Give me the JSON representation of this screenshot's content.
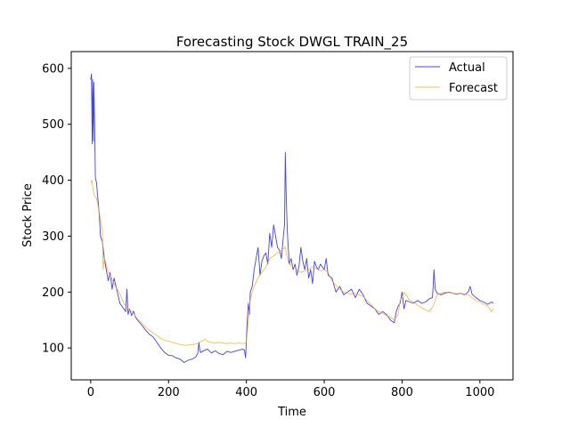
{
  "chart_data": {
    "type": "line",
    "title": "Forecasting Stock DWGL TRAIN_25",
    "xlabel": "Time",
    "ylabel": "Stock Price",
    "xlim": [
      -50,
      1085
    ],
    "ylim": [
      43,
      630
    ],
    "xticks": [
      0,
      200,
      400,
      600,
      800,
      1000
    ],
    "yticks": [
      100,
      200,
      300,
      400,
      500,
      600
    ],
    "grid": false,
    "legend_position": "top-right",
    "series": [
      {
        "name": "Actual",
        "color": "#0000ff",
        "points": [
          [
            0,
            580
          ],
          [
            2,
            590
          ],
          [
            4,
            465
          ],
          [
            5,
            580
          ],
          [
            7,
            470
          ],
          [
            8,
            575
          ],
          [
            10,
            500
          ],
          [
            12,
            405
          ],
          [
            15,
            395
          ],
          [
            18,
            370
          ],
          [
            22,
            340
          ],
          [
            25,
            300
          ],
          [
            30,
            290
          ],
          [
            35,
            260
          ],
          [
            40,
            240
          ],
          [
            45,
            220
          ],
          [
            50,
            235
          ],
          [
            55,
            205
          ],
          [
            60,
            225
          ],
          [
            65,
            210
          ],
          [
            70,
            195
          ],
          [
            75,
            180
          ],
          [
            80,
            175
          ],
          [
            85,
            170
          ],
          [
            90,
            165
          ],
          [
            93,
            205
          ],
          [
            96,
            160
          ],
          [
            100,
            170
          ],
          [
            105,
            158
          ],
          [
            110,
            166
          ],
          [
            115,
            155
          ],
          [
            120,
            150
          ],
          [
            130,
            142
          ],
          [
            140,
            133
          ],
          [
            150,
            125
          ],
          [
            160,
            120
          ],
          [
            170,
            110
          ],
          [
            180,
            100
          ],
          [
            190,
            92
          ],
          [
            200,
            87
          ],
          [
            210,
            86
          ],
          [
            220,
            82
          ],
          [
            230,
            80
          ],
          [
            240,
            74
          ],
          [
            250,
            78
          ],
          [
            260,
            80
          ],
          [
            270,
            84
          ],
          [
            275,
            90
          ],
          [
            278,
            110
          ],
          [
            280,
            98
          ],
          [
            282,
            92
          ],
          [
            290,
            95
          ],
          [
            300,
            98
          ],
          [
            310,
            91
          ],
          [
            320,
            95
          ],
          [
            330,
            90
          ],
          [
            340,
            88
          ],
          [
            350,
            94
          ],
          [
            360,
            92
          ],
          [
            370,
            94
          ],
          [
            380,
            96
          ],
          [
            390,
            98
          ],
          [
            395,
            96
          ],
          [
            398,
            82
          ],
          [
            400,
            115
          ],
          [
            402,
            145
          ],
          [
            405,
            180
          ],
          [
            408,
            160
          ],
          [
            410,
            200
          ],
          [
            415,
            210
          ],
          [
            420,
            240
          ],
          [
            425,
            260
          ],
          [
            430,
            280
          ],
          [
            435,
            230
          ],
          [
            440,
            255
          ],
          [
            445,
            265
          ],
          [
            450,
            270
          ],
          [
            455,
            250
          ],
          [
            460,
            305
          ],
          [
            465,
            280
          ],
          [
            470,
            320
          ],
          [
            475,
            300
          ],
          [
            480,
            280
          ],
          [
            485,
            275
          ],
          [
            490,
            260
          ],
          [
            495,
            300
          ],
          [
            498,
            320
          ],
          [
            500,
            450
          ],
          [
            502,
            380
          ],
          [
            505,
            310
          ],
          [
            510,
            250
          ],
          [
            515,
            260
          ],
          [
            520,
            240
          ],
          [
            525,
            250
          ],
          [
            530,
            230
          ],
          [
            535,
            245
          ],
          [
            540,
            280
          ],
          [
            545,
            255
          ],
          [
            550,
            240
          ],
          [
            555,
            260
          ],
          [
            560,
            225
          ],
          [
            565,
            240
          ],
          [
            570,
            215
          ],
          [
            575,
            255
          ],
          [
            580,
            245
          ],
          [
            585,
            240
          ],
          [
            590,
            250
          ],
          [
            595,
            245
          ],
          [
            600,
            240
          ],
          [
            605,
            260
          ],
          [
            610,
            230
          ],
          [
            620,
            225
          ],
          [
            630,
            200
          ],
          [
            640,
            210
          ],
          [
            650,
            195
          ],
          [
            660,
            200
          ],
          [
            670,
            205
          ],
          [
            680,
            190
          ],
          [
            690,
            205
          ],
          [
            700,
            195
          ],
          [
            710,
            180
          ],
          [
            720,
            175
          ],
          [
            730,
            170
          ],
          [
            740,
            160
          ],
          [
            750,
            165
          ],
          [
            760,
            160
          ],
          [
            770,
            150
          ],
          [
            780,
            145
          ],
          [
            785,
            165
          ],
          [
            790,
            175
          ],
          [
            795,
            180
          ],
          [
            800,
            200
          ],
          [
            805,
            170
          ],
          [
            810,
            185
          ],
          [
            820,
            182
          ],
          [
            830,
            180
          ],
          [
            840,
            185
          ],
          [
            850,
            180
          ],
          [
            860,
            182
          ],
          [
            870,
            188
          ],
          [
            878,
            190
          ],
          [
            880,
            212
          ],
          [
            882,
            240
          ],
          [
            885,
            205
          ],
          [
            890,
            198
          ],
          [
            900,
            195
          ],
          [
            910,
            198
          ],
          [
            920,
            200
          ],
          [
            930,
            198
          ],
          [
            940,
            196
          ],
          [
            950,
            198
          ],
          [
            960,
            195
          ],
          [
            970,
            200
          ],
          [
            975,
            210
          ],
          [
            980,
            196
          ],
          [
            990,
            190
          ],
          [
            1000,
            185
          ],
          [
            1010,
            182
          ],
          [
            1020,
            178
          ],
          [
            1030,
            182
          ],
          [
            1035,
            180
          ]
        ]
      },
      {
        "name": "Forecast",
        "color": "#ffa500",
        "points": [
          [
            0,
            395
          ],
          [
            3,
            400
          ],
          [
            5,
            390
          ],
          [
            8,
            375
          ],
          [
            10,
            372
          ],
          [
            15,
            368
          ],
          [
            20,
            350
          ],
          [
            25,
            330
          ],
          [
            30,
            310
          ],
          [
            32,
            240
          ],
          [
            35,
            260
          ],
          [
            40,
            250
          ],
          [
            45,
            235
          ],
          [
            50,
            230
          ],
          [
            55,
            222
          ],
          [
            60,
            215
          ],
          [
            65,
            208
          ],
          [
            70,
            203
          ],
          [
            75,
            197
          ],
          [
            80,
            188
          ],
          [
            85,
            180
          ],
          [
            90,
            175
          ],
          [
            95,
            172
          ],
          [
            100,
            168
          ],
          [
            110,
            162
          ],
          [
            120,
            152
          ],
          [
            130,
            146
          ],
          [
            140,
            138
          ],
          [
            150,
            132
          ],
          [
            160,
            127
          ],
          [
            170,
            122
          ],
          [
            180,
            117
          ],
          [
            190,
            114
          ],
          [
            200,
            112
          ],
          [
            210,
            110
          ],
          [
            220,
            108
          ],
          [
            230,
            106
          ],
          [
            240,
            105
          ],
          [
            250,
            105
          ],
          [
            260,
            106
          ],
          [
            270,
            107
          ],
          [
            280,
            110
          ],
          [
            290,
            114
          ],
          [
            295,
            116
          ],
          [
            300,
            112
          ],
          [
            310,
            110
          ],
          [
            320,
            109
          ],
          [
            330,
            110
          ],
          [
            340,
            109
          ],
          [
            350,
            108
          ],
          [
            360,
            109
          ],
          [
            370,
            108
          ],
          [
            380,
            109
          ],
          [
            390,
            108
          ],
          [
            395,
            108
          ],
          [
            400,
            110
          ],
          [
            405,
            150
          ],
          [
            410,
            185
          ],
          [
            415,
            200
          ],
          [
            420,
            210
          ],
          [
            430,
            225
          ],
          [
            440,
            235
          ],
          [
            450,
            245
          ],
          [
            460,
            260
          ],
          [
            470,
            265
          ],
          [
            480,
            270
          ],
          [
            490,
            275
          ],
          [
            500,
            280
          ],
          [
            505,
            260
          ],
          [
            510,
            250
          ],
          [
            520,
            245
          ],
          [
            530,
            240
          ],
          [
            540,
            235
          ],
          [
            550,
            238
          ],
          [
            560,
            240
          ],
          [
            570,
            245
          ],
          [
            580,
            242
          ],
          [
            590,
            238
          ],
          [
            600,
            240
          ],
          [
            610,
            235
          ],
          [
            620,
            220
          ],
          [
            630,
            212
          ],
          [
            640,
            205
          ],
          [
            650,
            200
          ],
          [
            660,
            198
          ],
          [
            670,
            196
          ],
          [
            680,
            198
          ],
          [
            690,
            195
          ],
          [
            700,
            192
          ],
          [
            710,
            185
          ],
          [
            720,
            178
          ],
          [
            730,
            170
          ],
          [
            740,
            165
          ],
          [
            750,
            162
          ],
          [
            760,
            158
          ],
          [
            770,
            155
          ],
          [
            780,
            150
          ],
          [
            790,
            160
          ],
          [
            795,
            185
          ],
          [
            800,
            190
          ],
          [
            805,
            200
          ],
          [
            810,
            195
          ],
          [
            820,
            185
          ],
          [
            830,
            182
          ],
          [
            840,
            176
          ],
          [
            850,
            172
          ],
          [
            860,
            168
          ],
          [
            870,
            165
          ],
          [
            880,
            175
          ],
          [
            890,
            195
          ],
          [
            900,
            198
          ],
          [
            910,
            200
          ],
          [
            920,
            199
          ],
          [
            930,
            198
          ],
          [
            940,
            197
          ],
          [
            950,
            198
          ],
          [
            960,
            196
          ],
          [
            970,
            195
          ],
          [
            980,
            190
          ],
          [
            990,
            185
          ],
          [
            1000,
            182
          ],
          [
            1010,
            178
          ],
          [
            1020,
            175
          ],
          [
            1030,
            165
          ],
          [
            1035,
            170
          ]
        ]
      }
    ]
  }
}
